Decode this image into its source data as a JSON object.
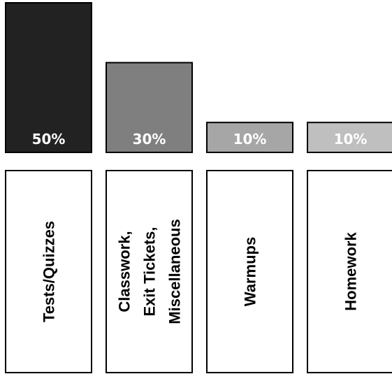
{
  "chart_data": {
    "type": "bar",
    "categories": [
      [
        "Tests/Quizzes"
      ],
      [
        "Classwork,",
        "Exit Tickets,",
        "Miscellaneous"
      ],
      [
        "Warmups"
      ],
      [
        "Homework"
      ]
    ],
    "values": [
      50,
      30,
      10,
      10
    ],
    "data_labels": [
      "50%",
      "30%",
      "10%",
      "10%"
    ],
    "colors": [
      "#222222",
      "#7f7f7f",
      "#a6a6a6",
      "#bfbfbf"
    ],
    "ylim": [
      0,
      50
    ],
    "grid": false,
    "legend": "none"
  }
}
